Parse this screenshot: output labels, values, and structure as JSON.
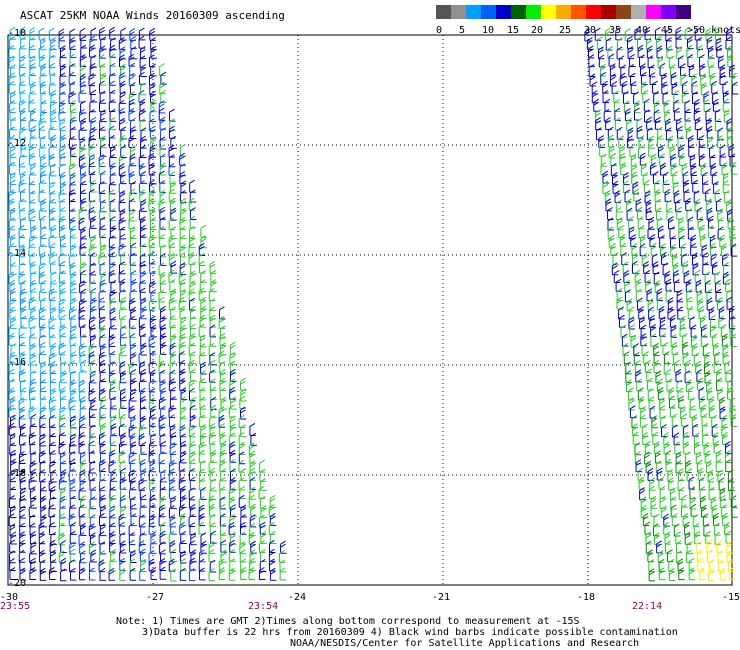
{
  "title": "ASCAT 25KM NOAA Winds 20160309 ascending",
  "legend": {
    "colors": [
      "#555555",
      "#909090",
      "#00a0ff",
      "#0060ff",
      "#0000cc",
      "#006000",
      "#00ee00",
      "#ffff00",
      "#ffaa00",
      "#ff5500",
      "#ff0000",
      "#aa0000",
      "#8b4513",
      "#b0b0b0",
      "#ff00ff",
      "#8000ff",
      "#400080"
    ],
    "labels": [
      "0",
      "5",
      "10",
      "15",
      "20",
      "25",
      "30",
      "35",
      "40",
      "45",
      ">50 knots"
    ]
  },
  "map": {
    "lon_range": [
      -30,
      -15
    ],
    "lat_range": [
      -10,
      -20
    ],
    "lon_ticks": [
      "-30",
      "-27",
      "-24",
      "-21",
      "-18",
      "-15"
    ],
    "lat_ticks": [
      "-10",
      "-12",
      "-14",
      "-16",
      "-18",
      "-20"
    ]
  },
  "times": {
    "t1": "23:55",
    "t2": "23:54",
    "t3": "22:14"
  },
  "notes": [
    "Note: 1) Times are GMT 2)Times along bottom correspond to measurement at -15S",
    "3)Data buffer is 22 hrs from 20160309 4) Black wind barbs indicate possible contamination",
    "NOAA/NESDIS/Center for Satellite Applications and Research"
  ]
}
